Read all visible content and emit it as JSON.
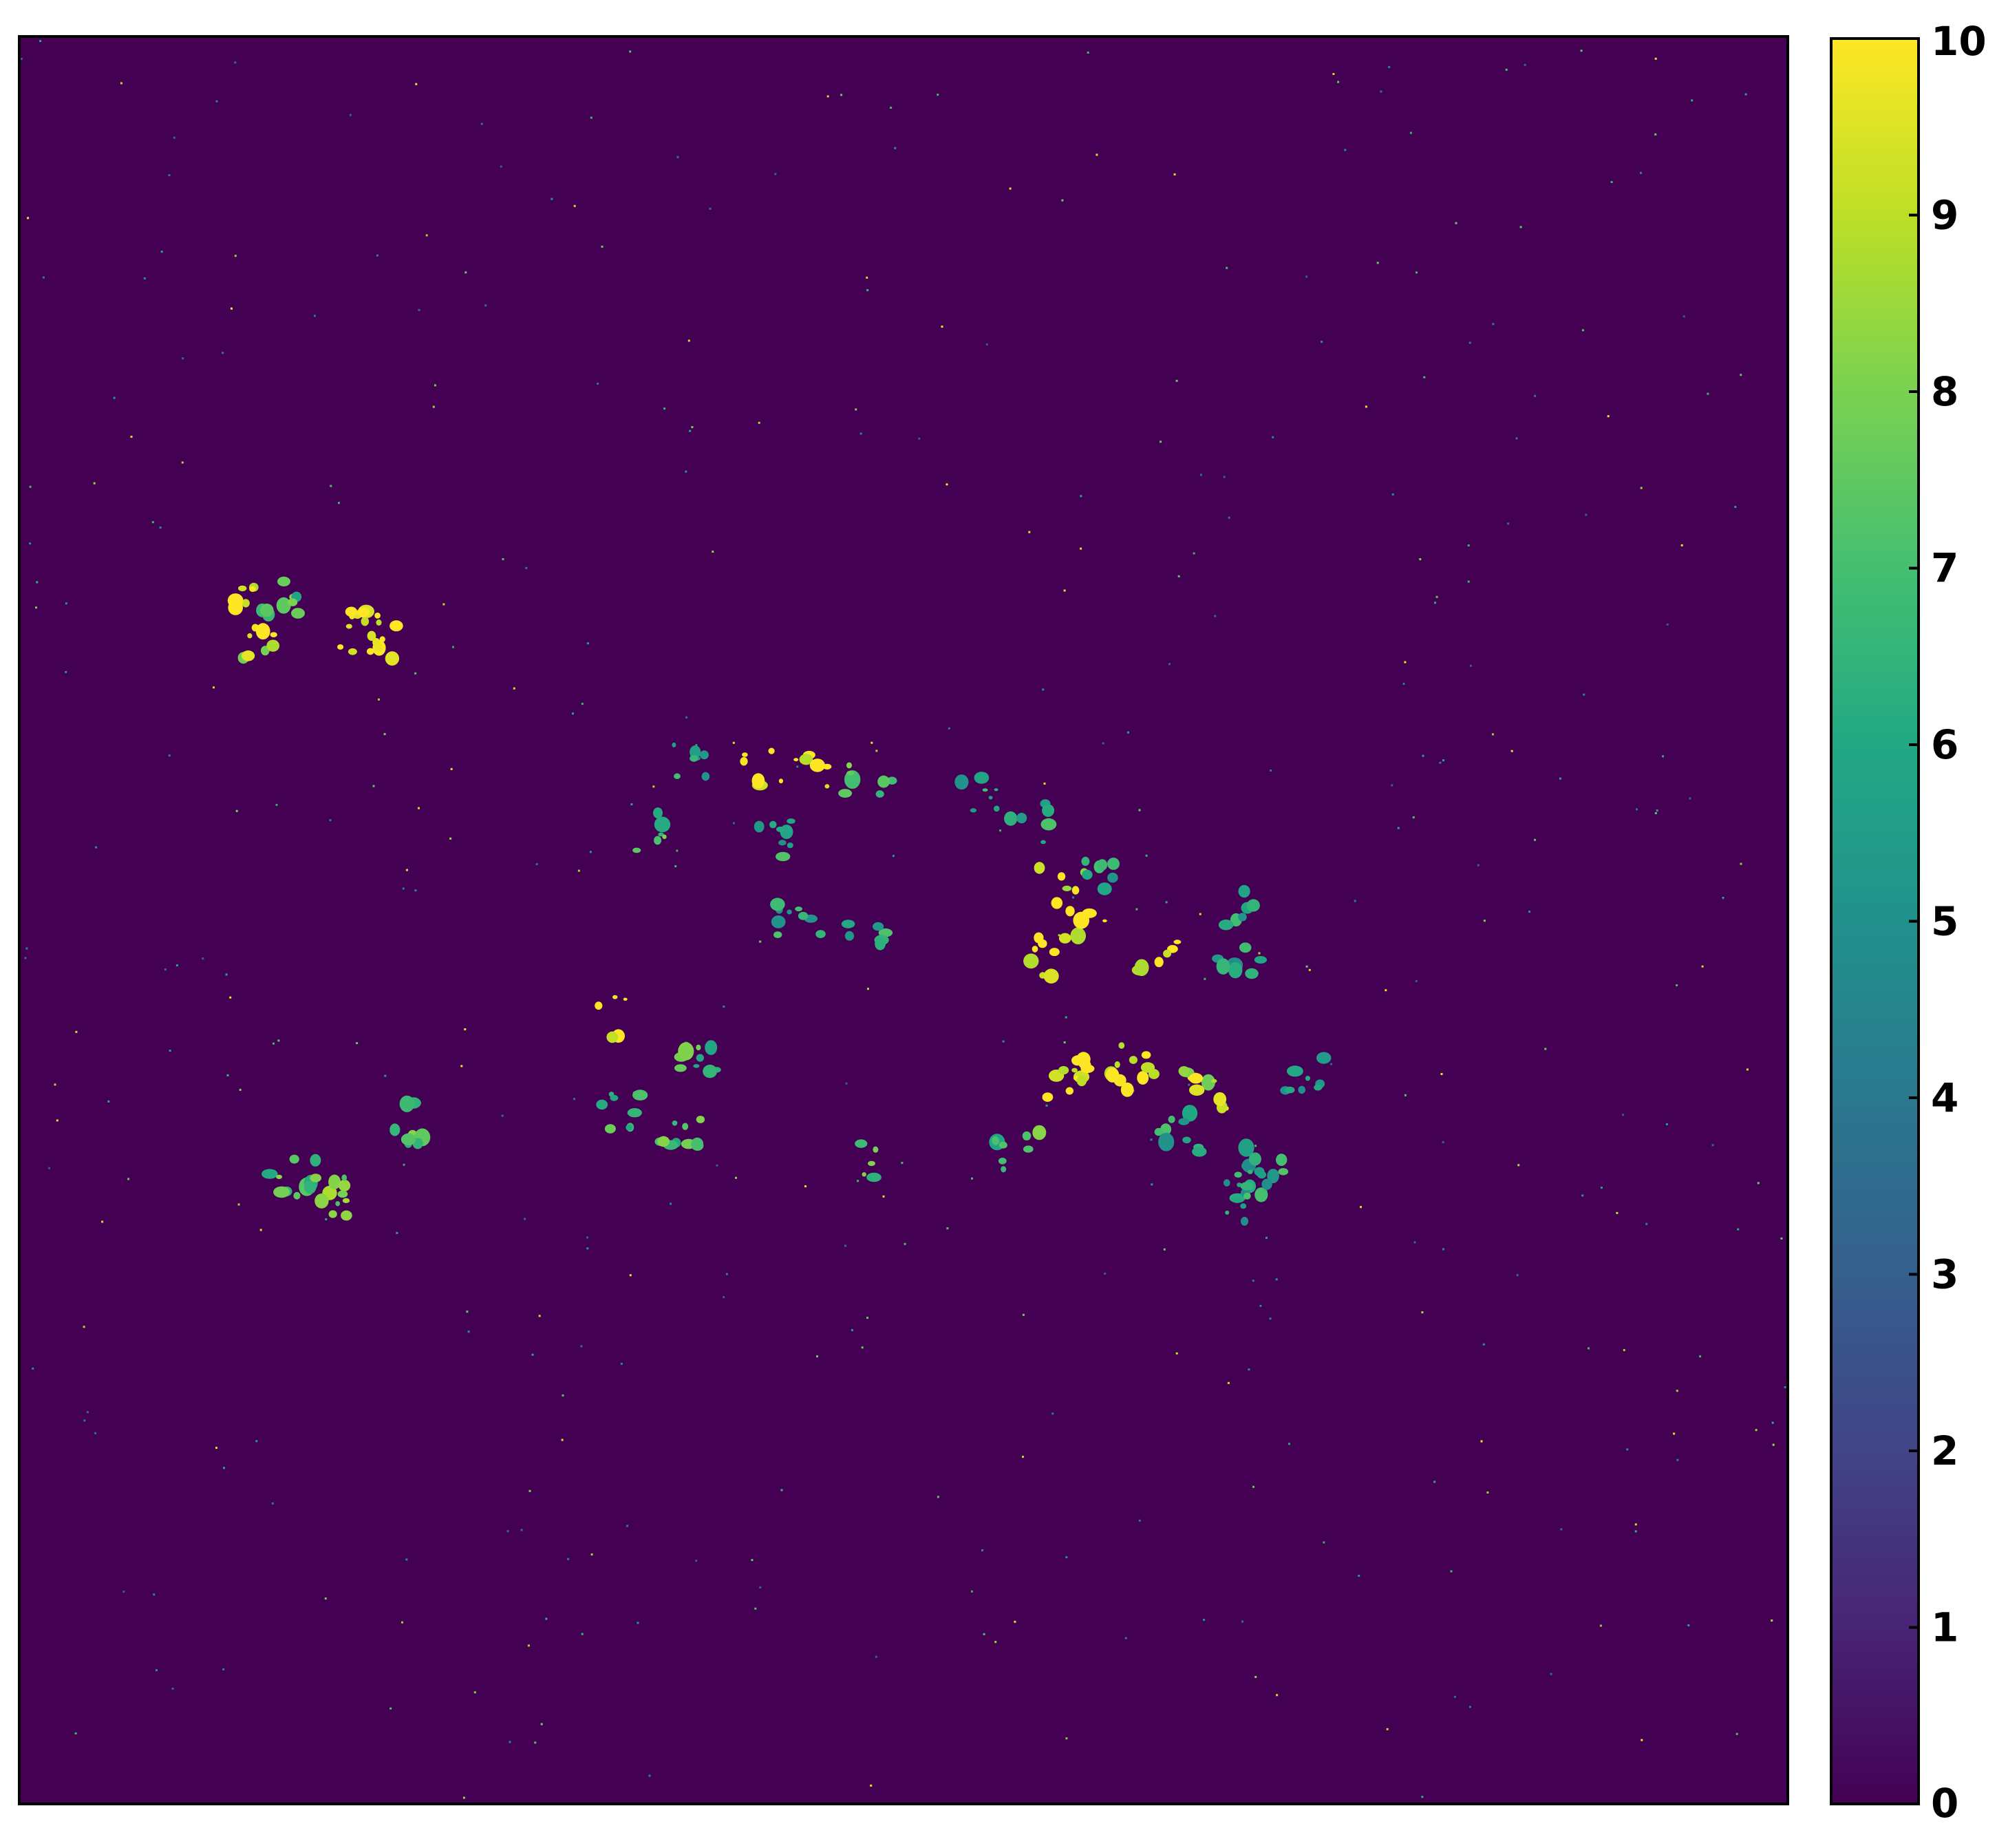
{
  "chart_data": {
    "type": "heatmap",
    "title": "",
    "xlabel": "",
    "ylabel": "",
    "colormap": "viridis",
    "colorbar": {
      "range": [
        0,
        10
      ],
      "ticks": [
        0,
        1,
        2,
        3,
        4,
        5,
        6,
        7,
        8,
        9,
        10
      ],
      "tick_labels": [
        "0",
        "1",
        "2",
        "3",
        "4",
        "5",
        "6",
        "7",
        "8",
        "9",
        "10"
      ]
    },
    "background_value": 0,
    "axes_ticks_visible": false,
    "clusters": [
      {
        "x": 0.135,
        "y": 0.313,
        "value": 10
      },
      {
        "x": 0.19,
        "y": 0.335,
        "value": 10
      },
      {
        "x": 0.15,
        "y": 0.32,
        "value": 7
      },
      {
        "x": 0.135,
        "y": 0.34,
        "value": 9
      },
      {
        "x": 0.2,
        "y": 0.345,
        "value": 10
      },
      {
        "x": 0.375,
        "y": 0.41,
        "value": 6
      },
      {
        "x": 0.45,
        "y": 0.415,
        "value": 10
      },
      {
        "x": 0.42,
        "y": 0.415,
        "value": 10
      },
      {
        "x": 0.48,
        "y": 0.418,
        "value": 7
      },
      {
        "x": 0.54,
        "y": 0.43,
        "value": 6
      },
      {
        "x": 0.57,
        "y": 0.445,
        "value": 6
      },
      {
        "x": 0.355,
        "y": 0.45,
        "value": 7
      },
      {
        "x": 0.43,
        "y": 0.455,
        "value": 6
      },
      {
        "x": 0.59,
        "y": 0.48,
        "value": 9
      },
      {
        "x": 0.61,
        "y": 0.475,
        "value": 6
      },
      {
        "x": 0.605,
        "y": 0.5,
        "value": 10
      },
      {
        "x": 0.585,
        "y": 0.52,
        "value": 10
      },
      {
        "x": 0.645,
        "y": 0.52,
        "value": 10
      },
      {
        "x": 0.69,
        "y": 0.495,
        "value": 6
      },
      {
        "x": 0.44,
        "y": 0.5,
        "value": 6
      },
      {
        "x": 0.48,
        "y": 0.505,
        "value": 6
      },
      {
        "x": 0.69,
        "y": 0.525,
        "value": 6
      },
      {
        "x": 0.335,
        "y": 0.555,
        "value": 10
      },
      {
        "x": 0.385,
        "y": 0.575,
        "value": 7
      },
      {
        "x": 0.59,
        "y": 0.59,
        "value": 10
      },
      {
        "x": 0.61,
        "y": 0.58,
        "value": 10
      },
      {
        "x": 0.63,
        "y": 0.585,
        "value": 10
      },
      {
        "x": 0.67,
        "y": 0.595,
        "value": 9
      },
      {
        "x": 0.725,
        "y": 0.585,
        "value": 6
      },
      {
        "x": 0.22,
        "y": 0.615,
        "value": 7
      },
      {
        "x": 0.34,
        "y": 0.607,
        "value": 7
      },
      {
        "x": 0.375,
        "y": 0.618,
        "value": 7
      },
      {
        "x": 0.655,
        "y": 0.62,
        "value": 6
      },
      {
        "x": 0.69,
        "y": 0.64,
        "value": 6
      },
      {
        "x": 0.565,
        "y": 0.63,
        "value": 7
      },
      {
        "x": 0.475,
        "y": 0.635,
        "value": 7
      },
      {
        "x": 0.155,
        "y": 0.645,
        "value": 7
      },
      {
        "x": 0.18,
        "y": 0.657,
        "value": 8
      },
      {
        "x": 0.695,
        "y": 0.66,
        "value": 6
      },
      {
        "x": 0.705,
        "y": 0.645,
        "value": 6
      }
    ]
  }
}
